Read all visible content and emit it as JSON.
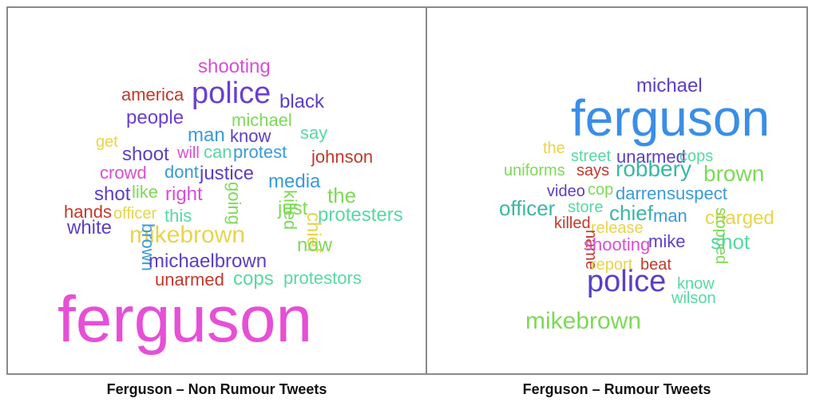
{
  "left_panel": {
    "caption": "Ferguson – Non Rumour Tweets",
    "words": [
      {
        "text": "shooting",
        "color": "#d94fd0"
      },
      {
        "text": "america",
        "color": "#c0392b"
      },
      {
        "text": "police",
        "color": "#6a3fd0"
      },
      {
        "text": "black",
        "color": "#5b3fc4"
      },
      {
        "text": "people",
        "color": "#6a3fd0"
      },
      {
        "text": "michael",
        "color": "#7ed957"
      },
      {
        "text": "man",
        "color": "#3a9ad9"
      },
      {
        "text": "know",
        "color": "#5b3fc4"
      },
      {
        "text": "say",
        "color": "#57d9a3"
      },
      {
        "text": "get",
        "color": "#e8d44d"
      },
      {
        "text": "shoot",
        "color": "#5b3fc4"
      },
      {
        "text": "will",
        "color": "#d94fd0"
      },
      {
        "text": "can",
        "color": "#57d9a3"
      },
      {
        "text": "protest",
        "color": "#3a9ad9"
      },
      {
        "text": "johnson",
        "color": "#c0392b"
      },
      {
        "text": "crowd",
        "color": "#d94fd0"
      },
      {
        "text": "dont",
        "color": "#3a9ad9"
      },
      {
        "text": "justice",
        "color": "#5b3fc4"
      },
      {
        "text": "media",
        "color": "#3a9ad9"
      },
      {
        "text": "shot",
        "color": "#5b3fc4"
      },
      {
        "text": "like",
        "color": "#7ed957"
      },
      {
        "text": "right",
        "color": "#d94fd0"
      },
      {
        "text": "going",
        "color": "#7ed957"
      },
      {
        "text": "the",
        "color": "#7ed957"
      },
      {
        "text": "hands",
        "color": "#c0392b"
      },
      {
        "text": "officer",
        "color": "#e8d44d"
      },
      {
        "text": "this",
        "color": "#57d9a3"
      },
      {
        "text": "killed",
        "color": "#7ed957"
      },
      {
        "text": "just",
        "color": "#7ed957"
      },
      {
        "text": "protesters",
        "color": "#57d9a3"
      },
      {
        "text": "white",
        "color": "#5b3fc4"
      },
      {
        "text": "chief",
        "color": "#e8d44d"
      },
      {
        "text": "now",
        "color": "#7ed957"
      },
      {
        "text": "mikebrown",
        "color": "#e8d44d"
      },
      {
        "text": "brown",
        "color": "#3a9ad9"
      },
      {
        "text": "michaelbrown",
        "color": "#5b3fc4"
      },
      {
        "text": "unarmed",
        "color": "#c0392b"
      },
      {
        "text": "cops",
        "color": "#57d9a3"
      },
      {
        "text": "protestors",
        "color": "#57d9a3"
      },
      {
        "text": "ferguson",
        "color": "#e64fd6"
      }
    ]
  },
  "right_panel": {
    "caption": "Ferguson – Rumour Tweets",
    "words": [
      {
        "text": "michael",
        "color": "#5b3fc4"
      },
      {
        "text": "ferguson",
        "color": "#3a8ee6"
      },
      {
        "text": "the",
        "color": "#e8d44d"
      },
      {
        "text": "street",
        "color": "#57d9a3"
      },
      {
        "text": "unarmed",
        "color": "#5b3fc4"
      },
      {
        "text": "cops",
        "color": "#57d9a3"
      },
      {
        "text": "uniforms",
        "color": "#7ed957"
      },
      {
        "text": "says",
        "color": "#c0392b"
      },
      {
        "text": "robbery",
        "color": "#3ab8a3"
      },
      {
        "text": "brown",
        "color": "#7ed957"
      },
      {
        "text": "video",
        "color": "#5b3fc4"
      },
      {
        "text": "cop",
        "color": "#7ed957"
      },
      {
        "text": "darren",
        "color": "#3a9ad9"
      },
      {
        "text": "suspect",
        "color": "#3a9ad9"
      },
      {
        "text": "officer",
        "color": "#3ab8a3"
      },
      {
        "text": "store",
        "color": "#57d9a3"
      },
      {
        "text": "chief",
        "color": "#3ab8a3"
      },
      {
        "text": "man",
        "color": "#3a9ad9"
      },
      {
        "text": "charged",
        "color": "#e8d44d"
      },
      {
        "text": "killed",
        "color": "#c0392b"
      },
      {
        "text": "release",
        "color": "#e8d44d"
      },
      {
        "text": "stopped",
        "color": "#7ed957"
      },
      {
        "text": "shot",
        "color": "#57d9a3"
      },
      {
        "text": "name",
        "color": "#c0392b"
      },
      {
        "text": "shooting",
        "color": "#d94fd0"
      },
      {
        "text": "mike",
        "color": "#5b3fc4"
      },
      {
        "text": "report",
        "color": "#e8d44d"
      },
      {
        "text": "beat",
        "color": "#c0392b"
      },
      {
        "text": "police",
        "color": "#5b3fc4"
      },
      {
        "text": "know",
        "color": "#57d9a3"
      },
      {
        "text": "wilson",
        "color": "#57d9a3"
      },
      {
        "text": "mikebrown",
        "color": "#7ed957"
      }
    ]
  }
}
